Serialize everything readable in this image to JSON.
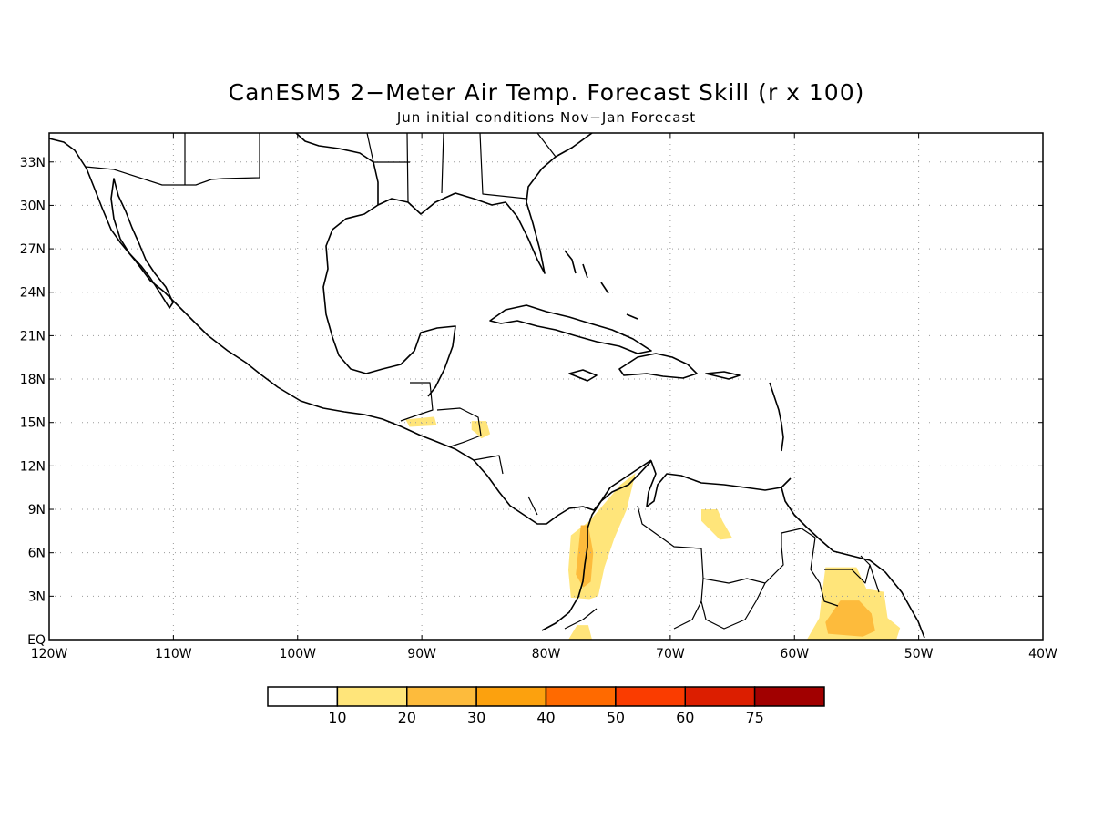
{
  "title": "CanESM5 2−Meter Air Temp. Forecast Skill (r x 100)",
  "subtitle": "Jun initial conditions   Nov−Jan Forecast",
  "map": {
    "lon_range": [
      -120,
      -40
    ],
    "lat_range": [
      0,
      35
    ],
    "lon_ticks": [
      {
        "value": -120,
        "label": "120W"
      },
      {
        "value": -110,
        "label": "110W"
      },
      {
        "value": -100,
        "label": "100W"
      },
      {
        "value": -90,
        "label": "90W"
      },
      {
        "value": -80,
        "label": "80W"
      },
      {
        "value": -70,
        "label": "70W"
      },
      {
        "value": -60,
        "label": "60W"
      },
      {
        "value": -50,
        "label": "50W"
      },
      {
        "value": -40,
        "label": "40W"
      }
    ],
    "lat_ticks": [
      {
        "value": 0,
        "label": "EQ"
      },
      {
        "value": 3,
        "label": "3N"
      },
      {
        "value": 6,
        "label": "6N"
      },
      {
        "value": 9,
        "label": "9N"
      },
      {
        "value": 12,
        "label": "12N"
      },
      {
        "value": 15,
        "label": "15N"
      },
      {
        "value": 18,
        "label": "18N"
      },
      {
        "value": 21,
        "label": "21N"
      },
      {
        "value": 24,
        "label": "24N"
      },
      {
        "value": 27,
        "label": "27N"
      },
      {
        "value": 30,
        "label": "30N"
      },
      {
        "value": 33,
        "label": "33N"
      }
    ],
    "grid": true
  },
  "colorbar": {
    "bins": [
      {
        "color": "#ffffff"
      },
      {
        "color": "#ffe57a"
      },
      {
        "color": "#fdbb3c"
      },
      {
        "color": "#fca10e"
      },
      {
        "color": "#ff6a00"
      },
      {
        "color": "#fa3c00"
      },
      {
        "color": "#dc1e00"
      },
      {
        "color": "#a10000"
      }
    ],
    "labels": [
      "10",
      "20",
      "30",
      "40",
      "50",
      "60",
      "75"
    ]
  },
  "skill_regions": [
    {
      "level": "10-20",
      "color": "#ffe57a",
      "polygon": [
        [
          -91.3,
          15.2
        ],
        [
          -89.0,
          15.4
        ],
        [
          -88.8,
          14.8
        ],
        [
          -91.0,
          14.7
        ]
      ]
    },
    {
      "level": "10-20",
      "color": "#ffe57a",
      "polygon": [
        [
          -86.0,
          15.1
        ],
        [
          -84.8,
          15.1
        ],
        [
          -84.5,
          14.2
        ],
        [
          -85.2,
          13.9
        ],
        [
          -85.7,
          14.3
        ],
        [
          -86.0,
          14.5
        ]
      ]
    },
    {
      "level": "10-20",
      "color": "#ffe57a",
      "polygon": [
        [
          -78.0,
          7.2
        ],
        [
          -76.5,
          8.2
        ],
        [
          -74.0,
          10.7
        ],
        [
          -72.8,
          11.5
        ],
        [
          -73.5,
          9.0
        ],
        [
          -74.5,
          7.0
        ],
        [
          -75.3,
          5.0
        ],
        [
          -75.8,
          3.0
        ],
        [
          -76.5,
          2.8
        ],
        [
          -78.0,
          2.9
        ],
        [
          -78.2,
          4.8
        ]
      ]
    },
    {
      "level": "10-20",
      "color": "#ffe57a",
      "polygon": [
        [
          -77.5,
          1.0
        ],
        [
          -76.6,
          1.0
        ],
        [
          -76.3,
          0.0
        ],
        [
          -78.2,
          0.0
        ]
      ]
    },
    {
      "level": "10-20",
      "color": "#ffe57a",
      "polygon": [
        [
          -67.5,
          9.0
        ],
        [
          -66.2,
          9.0
        ],
        [
          -65.8,
          8.2
        ],
        [
          -65.0,
          7.0
        ],
        [
          -66.0,
          6.9
        ],
        [
          -67.5,
          8.2
        ]
      ]
    },
    {
      "level": "10-20",
      "color": "#ffe57a",
      "polygon": [
        [
          -57.5,
          5.0
        ],
        [
          -55.0,
          5.0
        ],
        [
          -54.2,
          3.5
        ],
        [
          -52.8,
          3.3
        ],
        [
          -52.5,
          1.5
        ],
        [
          -51.5,
          0.8
        ],
        [
          -51.8,
          0.0
        ],
        [
          -59.0,
          0.0
        ],
        [
          -58.0,
          1.5
        ],
        [
          -57.8,
          3.0
        ]
      ]
    },
    {
      "level": "20-30",
      "color": "#fdbb3c",
      "polygon": [
        [
          -77.2,
          7.9
        ],
        [
          -76.6,
          7.9
        ],
        [
          -76.2,
          6.0
        ],
        [
          -76.4,
          4.0
        ],
        [
          -77.0,
          3.6
        ],
        [
          -77.6,
          4.5
        ]
      ]
    },
    {
      "level": "20-30",
      "color": "#fdbb3c",
      "polygon": [
        [
          -56.3,
          2.7
        ],
        [
          -54.8,
          2.7
        ],
        [
          -53.8,
          1.8
        ],
        [
          -53.5,
          0.6
        ],
        [
          -54.5,
          0.2
        ],
        [
          -57.3,
          0.4
        ],
        [
          -57.5,
          1.2
        ]
      ]
    }
  ]
}
